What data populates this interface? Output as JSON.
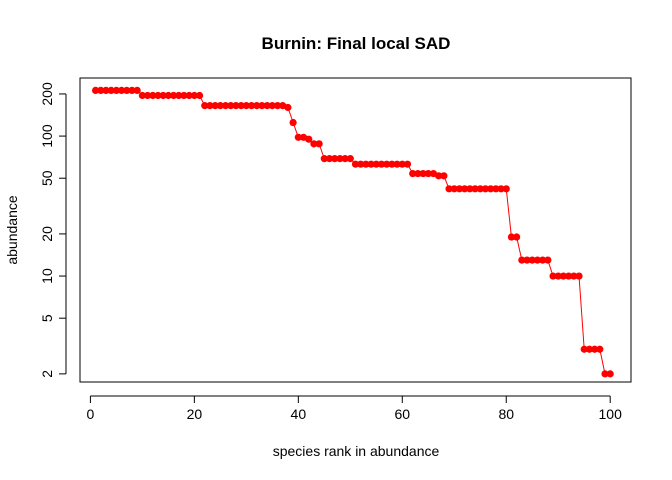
{
  "chart_data": {
    "type": "scatter",
    "title": "Burnin: Final local SAD",
    "xlabel": "species rank in abundance",
    "ylabel": "abundance",
    "xlim": [
      -2,
      104
    ],
    "ylim": [
      1.75,
      260
    ],
    "log_y": true,
    "grid": false,
    "legend": "none",
    "marker_color": "#ff0000",
    "line_color": "#ff0000",
    "x_ticks": [
      0,
      20,
      40,
      60,
      80,
      100
    ],
    "y_ticks": [
      2,
      5,
      10,
      20,
      50,
      100,
      200
    ],
    "series": [
      {
        "x": [
          1,
          2,
          3,
          4,
          5,
          6,
          7,
          8,
          9,
          10,
          11,
          12,
          13,
          14,
          15,
          16,
          17,
          18,
          19,
          20,
          21,
          22,
          23,
          24,
          25,
          26,
          27,
          28,
          29,
          30,
          31,
          32,
          33,
          34,
          35,
          36,
          37,
          38,
          39,
          40,
          41,
          42,
          43,
          44,
          45,
          46,
          47,
          48,
          49,
          50,
          51,
          52,
          53,
          54,
          55,
          56,
          57,
          58,
          59,
          60,
          61,
          62,
          63,
          64,
          65,
          66,
          67,
          68,
          69,
          70,
          71,
          72,
          73,
          74,
          75,
          76,
          77,
          78,
          79,
          80,
          81,
          82,
          83,
          84,
          85,
          86,
          87,
          88,
          89,
          90,
          91,
          92,
          93,
          94,
          95,
          96,
          97,
          98,
          99,
          100
        ],
        "values": [
          212,
          212,
          212,
          212,
          212,
          212,
          212,
          212,
          212,
          195,
          195,
          195,
          195,
          195,
          195,
          195,
          195,
          195,
          195,
          195,
          195,
          165,
          165,
          165,
          165,
          165,
          165,
          165,
          165,
          165,
          165,
          165,
          165,
          165,
          165,
          165,
          165,
          160,
          125,
          98,
          98,
          95,
          88,
          88,
          69,
          69,
          69,
          69,
          69,
          69,
          63,
          63,
          63,
          63,
          63,
          63,
          63,
          63,
          63,
          63,
          63,
          54,
          54,
          54,
          54,
          54,
          52,
          52,
          42,
          42,
          42,
          42,
          42,
          42,
          42,
          42,
          42,
          42,
          42,
          42,
          19,
          19,
          13,
          13,
          13,
          13,
          13,
          13,
          10,
          10,
          10,
          10,
          10,
          10,
          3,
          3,
          3,
          3,
          2,
          2
        ]
      }
    ]
  }
}
